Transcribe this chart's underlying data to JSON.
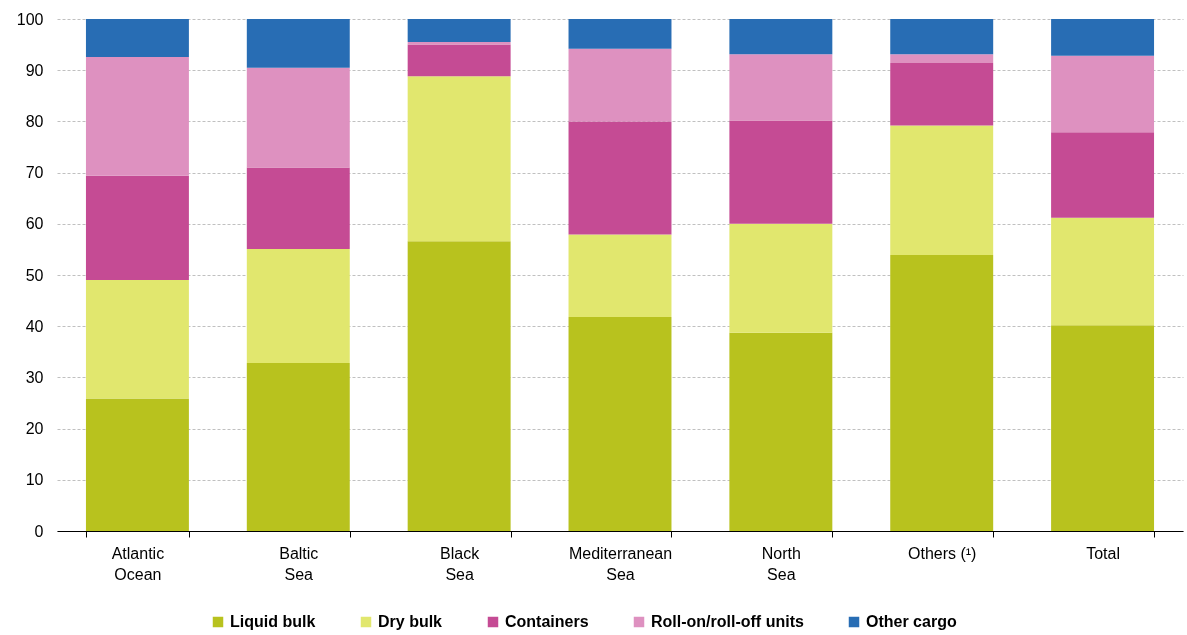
{
  "chart_data": {
    "type": "bar",
    "stacked": true,
    "categories": [
      "Atlantic Ocean",
      "Baltic Sea",
      "Black Sea",
      "Mediterranean Sea",
      "North Sea",
      "Others (¹)",
      "Total"
    ],
    "series": [
      {
        "name": "Liquid bulk",
        "color": "#b8c21e",
        "values": [
          25.9,
          32.8,
          56.6,
          41.8,
          38.7,
          53.9,
          40.2
        ]
      },
      {
        "name": "Dry bulk",
        "color": "#e1e76e",
        "values": [
          23.1,
          22.3,
          32.2,
          16.1,
          21.3,
          25.3,
          21.0
        ]
      },
      {
        "name": "Containers",
        "color": "#c54b94",
        "values": [
          20.4,
          15.9,
          6.2,
          22.1,
          20.2,
          12.2,
          16.7
        ]
      },
      {
        "name": "Roll-on/roll-off units",
        "color": "#de91c0",
        "values": [
          23.2,
          19.5,
          0.5,
          14.2,
          12.9,
          1.7,
          14.9
        ]
      },
      {
        "name": "Other cargo",
        "color": "#286db4",
        "values": [
          7.4,
          9.5,
          4.5,
          5.8,
          6.9,
          6.9,
          7.2
        ]
      }
    ],
    "ylim": [
      0,
      100
    ],
    "yticks": [
      0,
      10,
      20,
      30,
      40,
      50,
      60,
      70,
      80,
      90,
      100
    ],
    "grid": "y",
    "legend": "bottom"
  }
}
